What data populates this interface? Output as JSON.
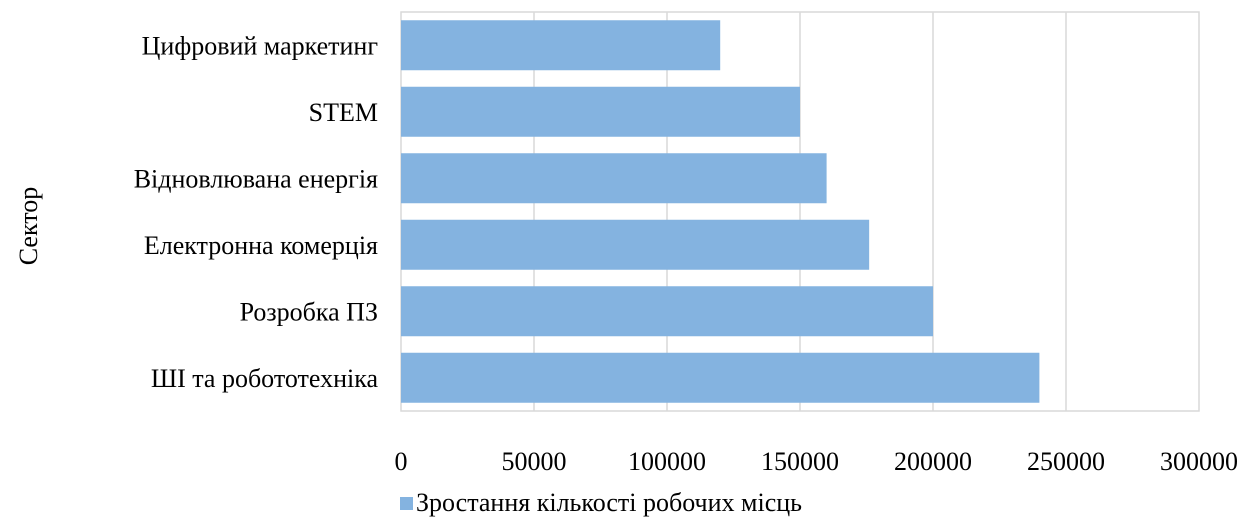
{
  "chart_data": {
    "type": "bar",
    "orientation": "horizontal",
    "categories": [
      "Цифровий маркетинг",
      "STEM",
      "Відновлювана енергія",
      "Електронна комерція",
      "Розробка ПЗ",
      "ШІ та робототехніка"
    ],
    "series": [
      {
        "name": "Зростання кількості робочих місць",
        "values": [
          120000,
          150000,
          160000,
          176000,
          200000,
          240000
        ],
        "color": "#84b3e0"
      }
    ],
    "xlim": [
      0,
      300000
    ],
    "xticks": [
      "0",
      "50000",
      "100000",
      "150000",
      "200000",
      "250000",
      "300000"
    ],
    "xtick_values": [
      0,
      50000,
      100000,
      150000,
      200000,
      250000,
      300000
    ],
    "xlabel": "",
    "ylabel": "Сектор",
    "title": "",
    "grid": true,
    "legend_position": "bottom"
  }
}
